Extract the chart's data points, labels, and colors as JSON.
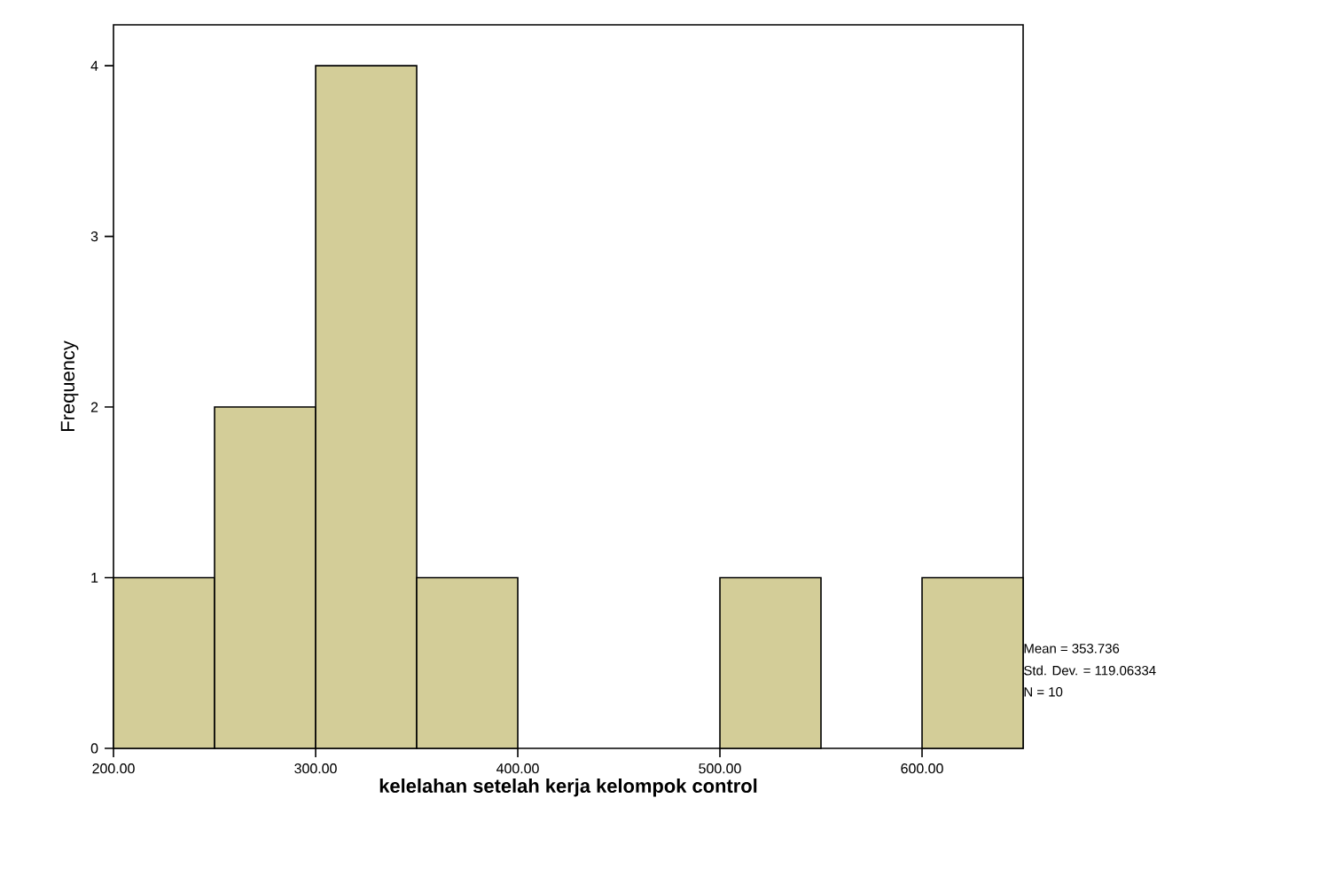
{
  "chart_data": {
    "type": "histogram",
    "xlabel": "kelelahan setelah kerja kelompok control",
    "ylabel": "Frequency",
    "bins": [
      200,
      250,
      300,
      350,
      400,
      450,
      500,
      550,
      600,
      650
    ],
    "values": [
      1,
      2,
      4,
      1,
      0,
      0,
      1,
      0,
      1
    ],
    "color": "#d3cd98",
    "xlim": [
      200,
      650
    ],
    "ylim": [
      0,
      4.24
    ],
    "xticks": [
      {
        "value": 200,
        "label": "200.00"
      },
      {
        "value": 300,
        "label": "300.00"
      },
      {
        "value": 400,
        "label": "400.00"
      },
      {
        "value": 500,
        "label": "500.00"
      },
      {
        "value": 600,
        "label": "600.00"
      }
    ],
    "yticks": [
      0,
      1,
      2,
      3,
      4
    ],
    "annotations": [
      "Mean = 353.736",
      "Std. Dev. = 119.06334",
      "N = 10"
    ]
  }
}
